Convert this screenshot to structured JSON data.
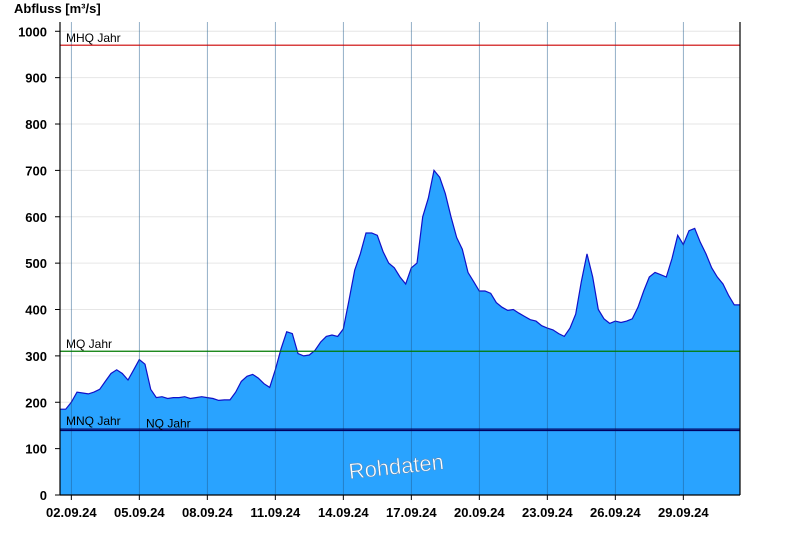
{
  "chart_data": {
    "type": "area",
    "ylabel": "Abfluss [m³/s]",
    "ylim": [
      0,
      1020
    ],
    "yticks": [
      0,
      100,
      200,
      300,
      400,
      500,
      600,
      700,
      800,
      900,
      1000
    ],
    "xlim": [
      "01.09.24 12:00",
      "01.10.24 12:00"
    ],
    "xtick_labels": [
      "02.09.24",
      "05.09.24",
      "08.09.24",
      "11.09.24",
      "14.09.24",
      "17.09.24",
      "20.09.24",
      "23.09.24",
      "26.09.24",
      "29.09.24"
    ],
    "grid": true,
    "fill_color": "#29a3ff",
    "line_color": "#1010c8",
    "watermark": "Rohdaten",
    "reference_lines": [
      {
        "label": "MHQ Jahr",
        "value": 970,
        "color": "#cc0000"
      },
      {
        "label": "MQ Jahr",
        "value": 310,
        "color": "#007a00"
      },
      {
        "label": "MNQ Jahr",
        "value": 142,
        "color": "#000060"
      },
      {
        "label": "NQ Jahr",
        "value": 139,
        "color": "#000060"
      }
    ],
    "series": [
      {
        "x": [
          "01.09.24 12:00",
          "01.09.24 18:00",
          "02.09.24 00:00",
          "02.09.24 06:00",
          "02.09.24 12:00",
          "02.09.24 18:00",
          "03.09.24 00:00",
          "03.09.24 06:00",
          "03.09.24 12:00",
          "03.09.24 18:00",
          "04.09.24 00:00",
          "04.09.24 06:00",
          "04.09.24 12:00",
          "04.09.24 18:00",
          "05.09.24 00:00",
          "05.09.24 06:00",
          "05.09.24 12:00",
          "05.09.24 18:00",
          "06.09.24 00:00",
          "06.09.24 06:00",
          "06.09.24 12:00",
          "06.09.24 18:00",
          "07.09.24 00:00",
          "07.09.24 06:00",
          "07.09.24 12:00",
          "07.09.24 18:00",
          "08.09.24 00:00",
          "08.09.24 06:00",
          "08.09.24 12:00",
          "08.09.24 18:00",
          "09.09.24 00:00",
          "09.09.24 06:00",
          "09.09.24 12:00",
          "09.09.24 18:00",
          "10.09.24 00:00",
          "10.09.24 06:00",
          "10.09.24 12:00",
          "10.09.24 18:00",
          "11.09.24 00:00",
          "11.09.24 06:00",
          "11.09.24 12:00",
          "11.09.24 18:00",
          "12.09.24 00:00",
          "12.09.24 06:00",
          "12.09.24 12:00",
          "12.09.24 18:00",
          "13.09.24 00:00",
          "13.09.24 06:00",
          "13.09.24 12:00",
          "13.09.24 18:00",
          "14.09.24 00:00",
          "14.09.24 06:00",
          "14.09.24 12:00",
          "14.09.24 18:00",
          "15.09.24 00:00",
          "15.09.24 06:00",
          "15.09.24 12:00",
          "15.09.24 18:00",
          "16.09.24 00:00",
          "16.09.24 06:00",
          "16.09.24 12:00",
          "16.09.24 18:00",
          "17.09.24 00:00",
          "17.09.24 06:00",
          "17.09.24 12:00",
          "17.09.24 18:00",
          "18.09.24 00:00",
          "18.09.24 06:00",
          "18.09.24 12:00",
          "18.09.24 18:00",
          "19.09.24 00:00",
          "19.09.24 06:00",
          "19.09.24 12:00",
          "19.09.24 18:00",
          "20.09.24 00:00",
          "20.09.24 06:00",
          "20.09.24 12:00",
          "20.09.24 18:00",
          "21.09.24 00:00",
          "21.09.24 06:00",
          "21.09.24 12:00",
          "21.09.24 18:00",
          "22.09.24 00:00",
          "22.09.24 06:00",
          "22.09.24 12:00",
          "22.09.24 18:00",
          "23.09.24 00:00",
          "23.09.24 06:00",
          "23.09.24 12:00",
          "23.09.24 18:00",
          "24.09.24 00:00",
          "24.09.24 06:00",
          "24.09.24 12:00",
          "24.09.24 18:00",
          "25.09.24 00:00",
          "25.09.24 06:00",
          "25.09.24 12:00",
          "25.09.24 18:00",
          "26.09.24 00:00",
          "26.09.24 06:00",
          "26.09.24 12:00",
          "26.09.24 18:00",
          "27.09.24 00:00",
          "27.09.24 06:00",
          "27.09.24 12:00",
          "27.09.24 18:00",
          "28.09.24 00:00",
          "28.09.24 06:00",
          "28.09.24 12:00",
          "28.09.24 18:00",
          "29.09.24 00:00",
          "29.09.24 06:00",
          "29.09.24 12:00",
          "29.09.24 18:00",
          "30.09.24 00:00",
          "30.09.24 06:00",
          "30.09.24 12:00",
          "30.09.24 18:00",
          "01.10.24 00:00",
          "01.10.24 06:00",
          "01.10.24 12:00"
        ],
        "y": [
          185,
          185,
          200,
          222,
          220,
          218,
          222,
          228,
          245,
          262,
          270,
          262,
          248,
          270,
          292,
          282,
          228,
          210,
          212,
          208,
          210,
          210,
          212,
          208,
          210,
          212,
          210,
          208,
          204,
          205,
          205,
          222,
          245,
          256,
          260,
          252,
          240,
          232,
          270,
          315,
          352,
          348,
          305,
          300,
          302,
          312,
          330,
          342,
          345,
          342,
          358,
          420,
          485,
          520,
          565,
          565,
          560,
          525,
          500,
          490,
          470,
          455,
          490,
          500,
          600,
          640,
          700,
          685,
          650,
          600,
          555,
          530,
          480,
          460,
          440,
          440,
          435,
          415,
          405,
          398,
          400,
          392,
          385,
          378,
          375,
          365,
          360,
          356,
          348,
          342,
          360,
          390,
          460,
          520,
          470,
          400,
          380,
          370,
          375,
          372,
          375,
          380,
          405,
          440,
          470,
          480,
          475,
          470,
          510,
          560,
          540,
          570,
          575,
          545,
          520,
          490,
          470,
          455,
          430,
          410,
          410
        ]
      }
    ]
  }
}
